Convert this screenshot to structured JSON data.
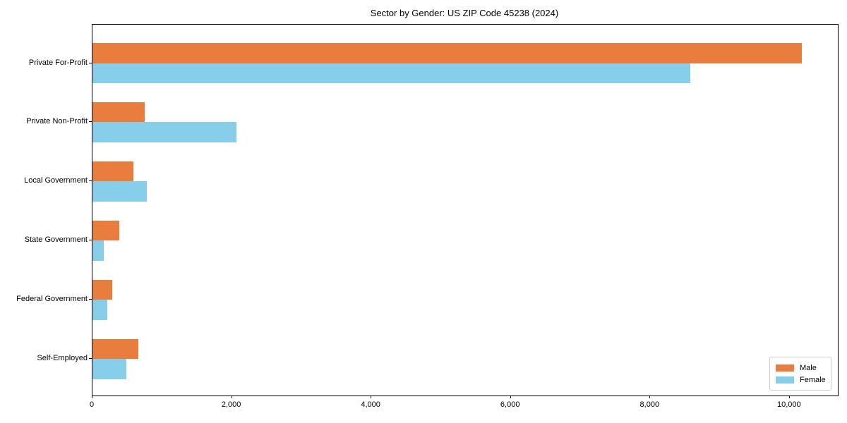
{
  "chart_data": {
    "type": "bar",
    "orientation": "horizontal",
    "title": "Sector by Gender: US ZIP Code 45238 (2024)",
    "categories": [
      "Private For-Profit",
      "Private Non-Profit",
      "Local Government",
      "State Government",
      "Federal Government",
      "Self-Employed"
    ],
    "series": [
      {
        "name": "Male",
        "color": "#E87D3E",
        "values": [
          10170,
          750,
          590,
          380,
          280,
          660
        ]
      },
      {
        "name": "Female",
        "color": "#87CEEB",
        "values": [
          8570,
          2060,
          780,
          160,
          210,
          490
        ]
      }
    ],
    "xlabel": "",
    "ylabel": "",
    "xlim": [
      0,
      10690
    ],
    "x_ticks": [
      0,
      2000,
      4000,
      6000,
      8000,
      10000
    ],
    "x_tick_labels": [
      "0",
      "2,000",
      "4,000",
      "6,000",
      "8,000",
      "10,000"
    ],
    "grid": false,
    "legend_position": "lower right",
    "background_color": "#ffffff",
    "axis_color": "#000000"
  }
}
